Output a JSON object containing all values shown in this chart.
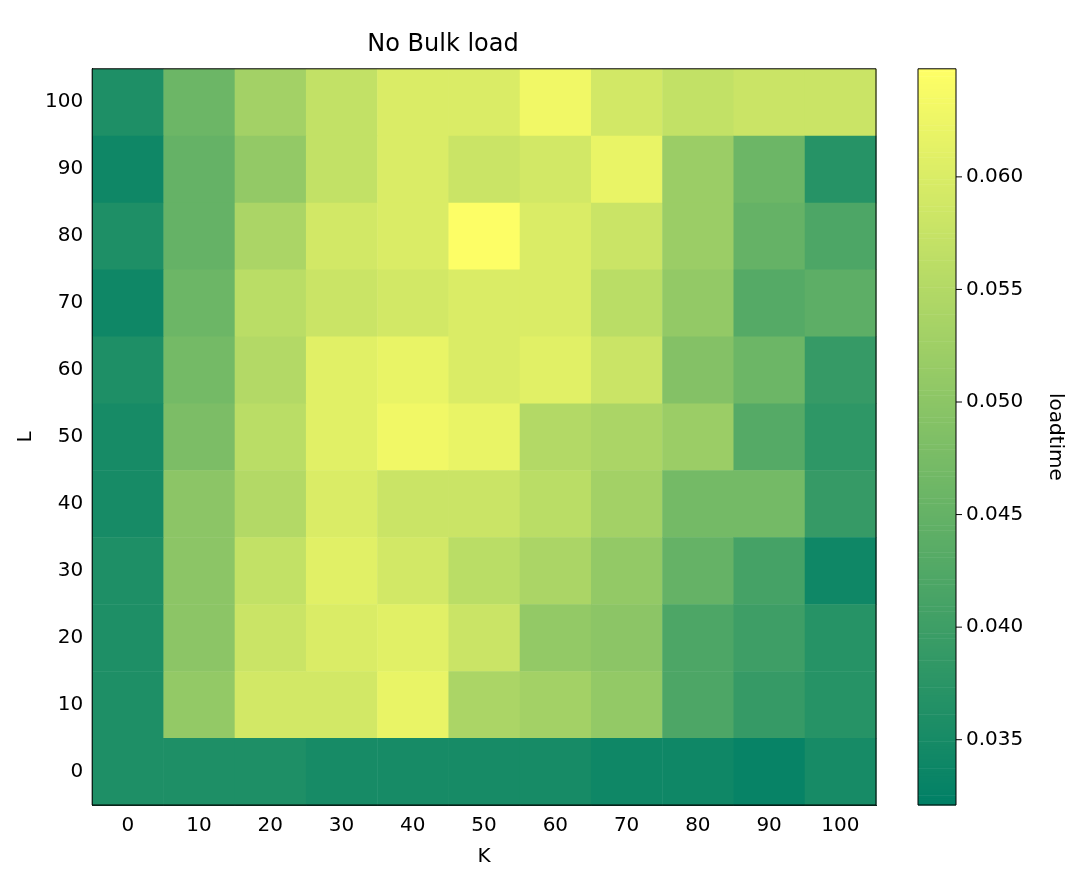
{
  "chart_data": {
    "type": "heatmap",
    "title": "No Bulk load",
    "xlabel": "K",
    "ylabel": "L",
    "clabel": "loadtime",
    "categories": [
      "0",
      "10",
      "20",
      "30",
      "40",
      "50",
      "60",
      "70",
      "80",
      "90",
      "100"
    ],
    "y_categories": [
      "100",
      "90",
      "80",
      "70",
      "60",
      "50",
      "40",
      "30",
      "20",
      "10",
      "0"
    ],
    "cells": [
      [
        0.036,
        0.046,
        0.053,
        0.057,
        0.06,
        0.06,
        0.063,
        0.059,
        0.057,
        0.058,
        0.058
      ],
      [
        0.034,
        0.045,
        0.051,
        0.057,
        0.06,
        0.058,
        0.059,
        0.062,
        0.052,
        0.046,
        0.037
      ],
      [
        0.036,
        0.045,
        0.054,
        0.059,
        0.06,
        0.0645,
        0.06,
        0.058,
        0.052,
        0.045,
        0.042
      ],
      [
        0.034,
        0.046,
        0.056,
        0.058,
        0.059,
        0.06,
        0.06,
        0.056,
        0.051,
        0.043,
        0.044
      ],
      [
        0.036,
        0.047,
        0.055,
        0.061,
        0.062,
        0.06,
        0.061,
        0.058,
        0.049,
        0.046,
        0.039
      ],
      [
        0.035,
        0.048,
        0.056,
        0.061,
        0.063,
        0.062,
        0.055,
        0.054,
        0.052,
        0.043,
        0.038
      ],
      [
        0.035,
        0.05,
        0.055,
        0.06,
        0.058,
        0.058,
        0.056,
        0.053,
        0.047,
        0.047,
        0.039
      ],
      [
        0.036,
        0.05,
        0.057,
        0.061,
        0.059,
        0.056,
        0.054,
        0.051,
        0.045,
        0.041,
        0.034
      ],
      [
        0.036,
        0.05,
        0.058,
        0.06,
        0.061,
        0.058,
        0.051,
        0.05,
        0.042,
        0.04,
        0.037
      ],
      [
        0.036,
        0.051,
        0.059,
        0.059,
        0.062,
        0.054,
        0.053,
        0.051,
        0.042,
        0.039,
        0.037
      ],
      [
        0.036,
        0.036,
        0.036,
        0.035,
        0.035,
        0.035,
        0.035,
        0.034,
        0.034,
        0.033,
        0.035
      ]
    ],
    "clim": [
      0.0321,
      0.0648
    ],
    "cticks": [
      0.035,
      {
        "value": 0.04,
        "label": "0.040"
      },
      0.045,
      {
        "value": 0.05,
        "label": "0.050"
      },
      0.055,
      {
        "value": 0.06,
        "label": "0.060"
      }
    ]
  }
}
